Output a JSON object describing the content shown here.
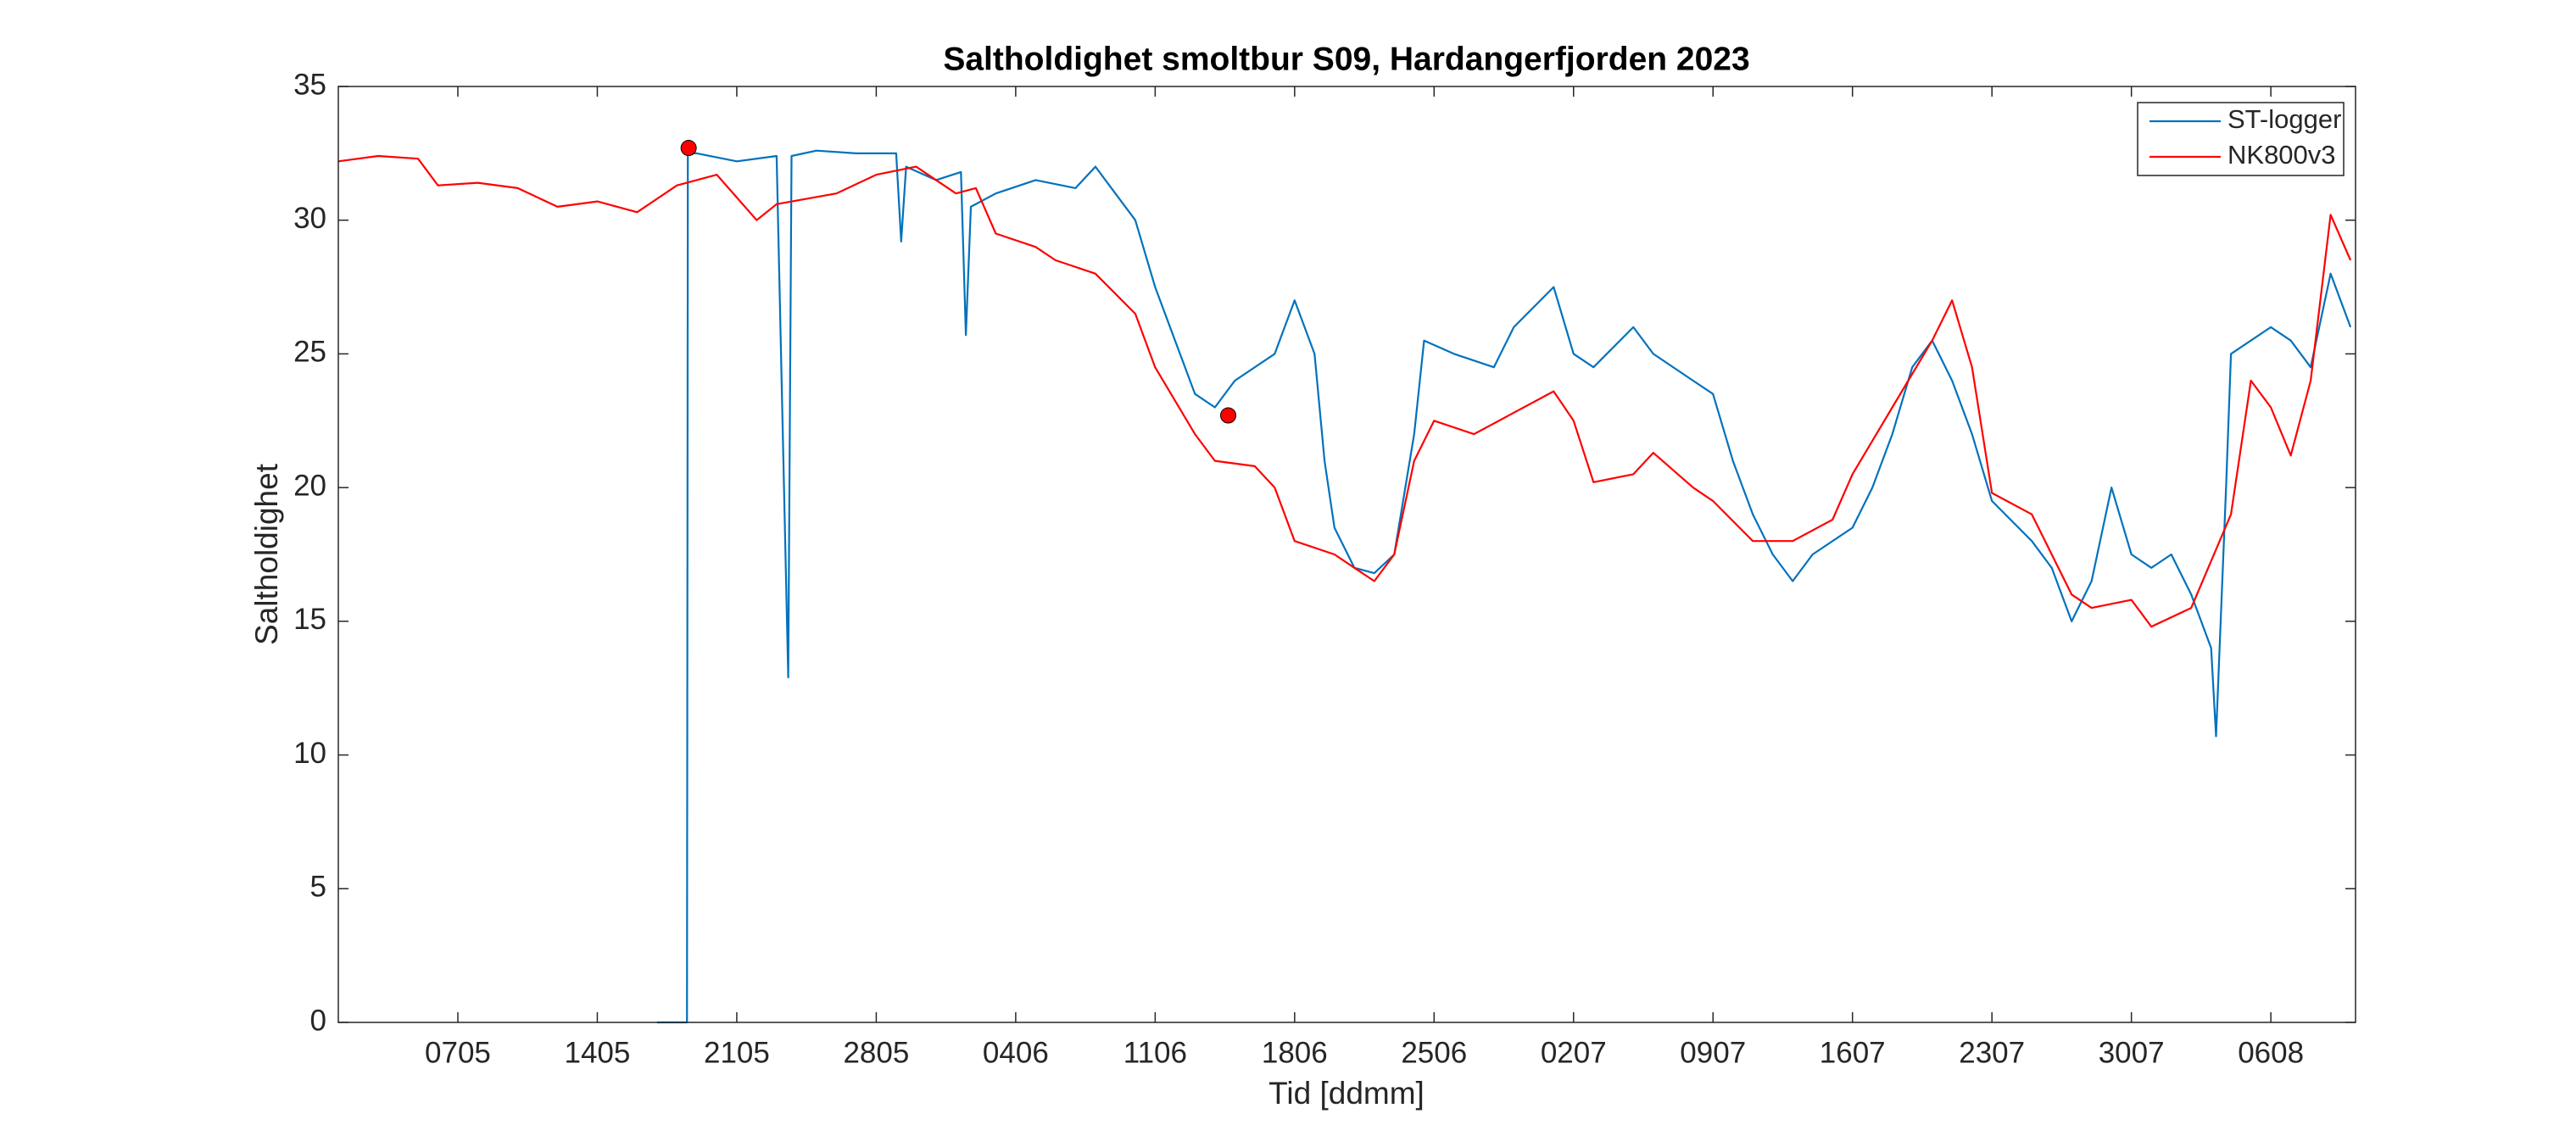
{
  "chart_data": {
    "type": "line",
    "title": "Saltholdighet smoltbur S09, Hardangerfjorden 2023",
    "xlabel": "Tid [ddmm]",
    "ylabel": "Saltholdighet",
    "xlim": [
      "2023-05-01",
      "2023-08-10T06:00"
    ],
    "xticks": [
      {
        "value": "2023-05-07",
        "label": "0705"
      },
      {
        "value": "2023-05-14",
        "label": "1405"
      },
      {
        "value": "2023-05-21",
        "label": "2105"
      },
      {
        "value": "2023-05-28",
        "label": "2805"
      },
      {
        "value": "2023-06-04",
        "label": "0406"
      },
      {
        "value": "2023-06-11",
        "label": "1106"
      },
      {
        "value": "2023-06-18",
        "label": "1806"
      },
      {
        "value": "2023-06-25",
        "label": "2506"
      },
      {
        "value": "2023-07-02",
        "label": "0207"
      },
      {
        "value": "2023-07-09",
        "label": "0907"
      },
      {
        "value": "2023-07-16",
        "label": "1607"
      },
      {
        "value": "2023-07-23",
        "label": "2307"
      },
      {
        "value": "2023-07-30",
        "label": "3007"
      },
      {
        "value": "2023-08-06",
        "label": "0608"
      }
    ],
    "ylim": [
      0,
      35
    ],
    "yticks": [
      0,
      5,
      10,
      15,
      20,
      25,
      30,
      35
    ],
    "grid": false,
    "legend": "upper right",
    "series": [
      {
        "name": "ST-logger",
        "color": "#0072bd",
        "x": [
          "2023-05-17",
          "2023-05-18T12:00",
          "2023-05-18T13:00",
          "2023-05-19",
          "2023-05-21",
          "2023-05-23",
          "2023-05-23T14:00",
          "2023-05-23T18:00",
          "2023-05-25",
          "2023-05-27",
          "2023-05-29",
          "2023-05-29T06:00",
          "2023-05-29T12:00",
          "2023-05-31",
          "2023-06-01T06:00",
          "2023-06-01T12:00",
          "2023-06-01T18:00",
          "2023-06-03",
          "2023-06-05",
          "2023-06-07",
          "2023-06-08",
          "2023-06-09",
          "2023-06-10",
          "2023-06-11",
          "2023-06-12",
          "2023-06-13",
          "2023-06-14",
          "2023-06-15",
          "2023-06-17",
          "2023-06-18",
          "2023-06-19",
          "2023-06-19T12:00",
          "2023-06-20",
          "2023-06-21",
          "2023-06-22",
          "2023-06-23",
          "2023-06-24",
          "2023-06-24T12:00",
          "2023-06-26",
          "2023-06-28",
          "2023-06-29",
          "2023-07-01",
          "2023-07-02",
          "2023-07-03",
          "2023-07-05",
          "2023-07-06",
          "2023-07-08",
          "2023-07-09",
          "2023-07-10",
          "2023-07-11",
          "2023-07-12",
          "2023-07-13",
          "2023-07-14",
          "2023-07-16",
          "2023-07-17",
          "2023-07-18",
          "2023-07-19",
          "2023-07-20",
          "2023-07-21",
          "2023-07-22",
          "2023-07-23",
          "2023-07-25",
          "2023-07-26",
          "2023-07-27",
          "2023-07-28",
          "2023-07-29",
          "2023-07-30",
          "2023-07-31",
          "2023-08-01",
          "2023-08-02",
          "2023-08-03",
          "2023-08-03T06:00",
          "2023-08-03T18:00",
          "2023-08-04",
          "2023-08-06",
          "2023-08-07",
          "2023-08-08",
          "2023-08-09",
          "2023-08-10"
        ],
        "values": [
          0,
          0,
          32.5,
          32.5,
          32.2,
          32.4,
          12.9,
          32.4,
          32.6,
          32.5,
          32.5,
          29.2,
          32.0,
          31.5,
          31.8,
          25.7,
          30.5,
          31.0,
          31.5,
          31.2,
          32.0,
          31.0,
          30.0,
          27.5,
          25.5,
          23.5,
          23.0,
          24.0,
          25.0,
          27.0,
          25.0,
          21.0,
          18.5,
          17.0,
          16.8,
          17.5,
          22.0,
          25.5,
          25.0,
          24.5,
          26.0,
          27.5,
          25.0,
          24.5,
          26.0,
          25.0,
          24.0,
          23.5,
          21.0,
          19.0,
          17.5,
          16.5,
          17.5,
          18.5,
          20.0,
          22.0,
          24.5,
          25.5,
          24.0,
          22.0,
          19.5,
          18.0,
          17.0,
          15.0,
          16.5,
          20.0,
          17.5,
          17.0,
          17.5,
          16.0,
          14.0,
          10.7,
          20.0,
          25.0,
          26.0,
          25.5,
          24.5,
          28.0,
          26.0
        ]
      },
      {
        "name": "NK800v3",
        "color": "#ff0000",
        "x": [
          "2023-05-01",
          "2023-05-03",
          "2023-05-05",
          "2023-05-06",
          "2023-05-08",
          "2023-05-10",
          "2023-05-12",
          "2023-05-14",
          "2023-05-16",
          "2023-05-18",
          "2023-05-20",
          "2023-05-22",
          "2023-05-23",
          "2023-05-26",
          "2023-05-28",
          "2023-05-30",
          "2023-06-01",
          "2023-06-02",
          "2023-06-03",
          "2023-06-05",
          "2023-06-06",
          "2023-06-08",
          "2023-06-10",
          "2023-06-11",
          "2023-06-13",
          "2023-06-14",
          "2023-06-16",
          "2023-06-17",
          "2023-06-18",
          "2023-06-20",
          "2023-06-21",
          "2023-06-22",
          "2023-06-23",
          "2023-06-24",
          "2023-06-25",
          "2023-06-27",
          "2023-06-29",
          "2023-07-01",
          "2023-07-02",
          "2023-07-03",
          "2023-07-05",
          "2023-07-06",
          "2023-07-08",
          "2023-07-09",
          "2023-07-11",
          "2023-07-13",
          "2023-07-15",
          "2023-07-16",
          "2023-07-18",
          "2023-07-20",
          "2023-07-21",
          "2023-07-22",
          "2023-07-23",
          "2023-07-25",
          "2023-07-27",
          "2023-07-28",
          "2023-07-30",
          "2023-07-31",
          "2023-08-02",
          "2023-08-04",
          "2023-08-05",
          "2023-08-06",
          "2023-08-07",
          "2023-08-08",
          "2023-08-09",
          "2023-08-10"
        ],
        "values": [
          32.2,
          32.4,
          32.3,
          31.3,
          31.4,
          31.2,
          30.5,
          30.7,
          30.3,
          31.3,
          31.7,
          30.0,
          30.6,
          31.0,
          31.7,
          32.0,
          31.0,
          31.2,
          29.5,
          29.0,
          28.5,
          28.0,
          26.5,
          24.5,
          22.0,
          21.0,
          20.8,
          20.0,
          18.0,
          17.5,
          17.0,
          16.5,
          17.5,
          21.0,
          22.5,
          22.0,
          22.8,
          23.6,
          22.5,
          20.2,
          20.5,
          21.3,
          20.0,
          19.5,
          18.0,
          18.0,
          18.8,
          20.5,
          23.0,
          25.5,
          27.0,
          24.5,
          19.8,
          19.0,
          16.0,
          15.5,
          15.8,
          14.8,
          15.5,
          19.0,
          24.0,
          23.0,
          21.2,
          24.0,
          30.2,
          28.5
        ]
      }
    ],
    "points": {
      "color": "#ff0000",
      "x": [
        "2023-05-18T14:00",
        "2023-06-14T16:00"
      ],
      "values": [
        32.7,
        22.7
      ]
    }
  }
}
